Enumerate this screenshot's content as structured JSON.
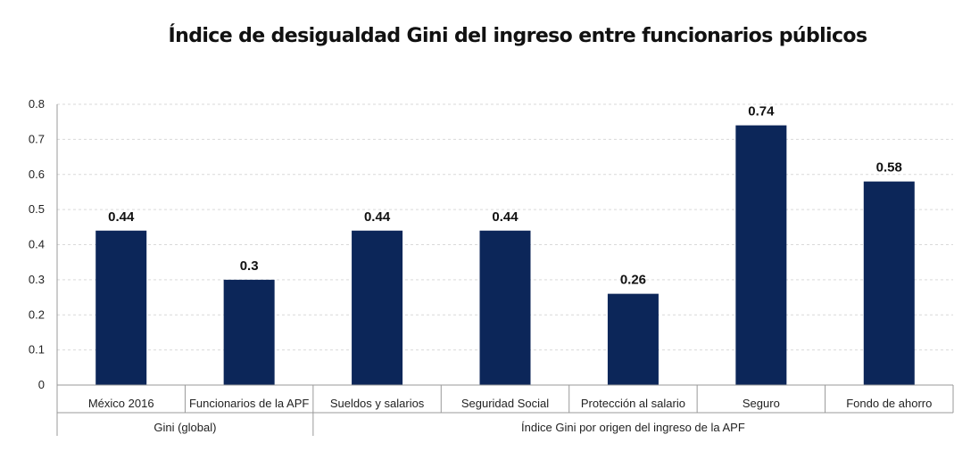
{
  "chart_data": {
    "type": "bar",
    "title": "Índice de desigualdad Gini del ingreso entre funcionarios públicos",
    "xlabel": "",
    "ylabel": "",
    "ylim": [
      0,
      0.8
    ],
    "yticks": [
      0,
      0.1,
      0.2,
      0.3,
      0.4,
      0.5,
      0.6,
      0.7,
      0.8
    ],
    "grid": true,
    "categories": [
      "México 2016",
      "Funcionarios de la APF",
      "Sueldos y salarios",
      "Seguridad Social",
      "Protección al salario",
      "Seguro",
      "Fondo de ahorro"
    ],
    "values": [
      0.44,
      0.3,
      0.44,
      0.44,
      0.26,
      0.74,
      0.58
    ],
    "data_labels": [
      "0.44",
      "0.3",
      "0.44",
      "0.44",
      "0.26",
      "0.74",
      "0.58"
    ],
    "groups": [
      {
        "label": "Gini (global)",
        "categories": [
          "México 2016",
          "Funcionarios de la APF"
        ]
      },
      {
        "label": "Índice Gini por origen del ingreso de la APF",
        "categories": [
          "Sueldos y salarios",
          "Seguridad Social",
          "Protección al salario",
          "Seguro",
          "Fondo de ahorro"
        ]
      }
    ],
    "colors": {
      "bar": "#0c2659",
      "grid": "#d9d9d9",
      "axis": "#999999"
    }
  }
}
